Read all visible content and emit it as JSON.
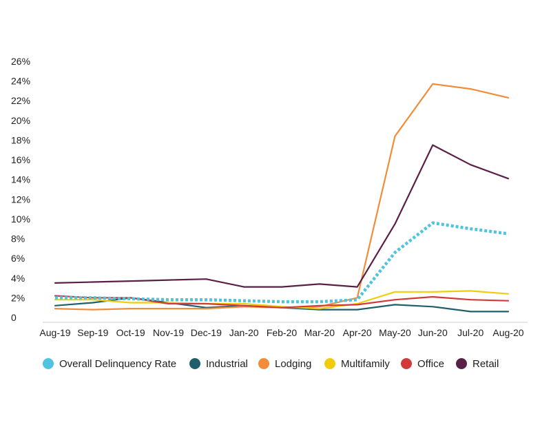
{
  "chart_data": {
    "type": "line",
    "categories": [
      "Aug-19",
      "Sep-19",
      "Oct-19",
      "Nov-19",
      "Dec-19",
      "Jan-20",
      "Feb-20",
      "Mar-20",
      "Apr-20",
      "May-20",
      "Jun-20",
      "Jul-20",
      "Aug-20"
    ],
    "y_tick_labels": [
      "0",
      "2%",
      "4%",
      "6%",
      "8%",
      "10%",
      "12%",
      "14%",
      "16%",
      "18%",
      "20%",
      "22%",
      "24%",
      "26%"
    ],
    "ylim": [
      0,
      26
    ],
    "grid": false,
    "legend_position": "bottom",
    "series": [
      {
        "name": "Overall Delinquency Rate",
        "color": "#4fc3e0",
        "dashed": true,
        "values": [
          2.0,
          2.0,
          1.9,
          1.8,
          1.8,
          1.7,
          1.6,
          1.6,
          1.8,
          6.6,
          9.6,
          9.0,
          8.5
        ]
      },
      {
        "name": "Industrial",
        "color": "#1f5f6b",
        "dashed": false,
        "values": [
          1.2,
          1.5,
          2.0,
          1.5,
          1.0,
          1.2,
          1.0,
          0.8,
          0.8,
          1.3,
          1.1,
          0.6,
          0.6
        ]
      },
      {
        "name": "Lodging",
        "color": "#f28c38",
        "dashed": false,
        "values": [
          0.9,
          0.8,
          0.9,
          0.9,
          0.9,
          1.1,
          1.0,
          1.1,
          2.0,
          18.4,
          23.7,
          23.2,
          22.3
        ]
      },
      {
        "name": "Multifamily",
        "color": "#f2cc0c",
        "dashed": false,
        "values": [
          1.8,
          1.8,
          1.5,
          1.5,
          1.4,
          1.4,
          1.1,
          0.9,
          1.4,
          2.6,
          2.6,
          2.7,
          2.4
        ]
      },
      {
        "name": "Office",
        "color": "#d23a3a",
        "dashed": false,
        "values": [
          2.2,
          2.0,
          2.0,
          1.4,
          1.4,
          1.2,
          1.0,
          1.2,
          1.3,
          1.8,
          2.1,
          1.8,
          1.7
        ]
      },
      {
        "name": "Retail",
        "color": "#5a1f46",
        "dashed": false,
        "values": [
          3.5,
          3.6,
          3.7,
          3.8,
          3.9,
          3.1,
          3.1,
          3.4,
          3.1,
          9.5,
          17.5,
          15.5,
          14.1
        ]
      }
    ]
  }
}
